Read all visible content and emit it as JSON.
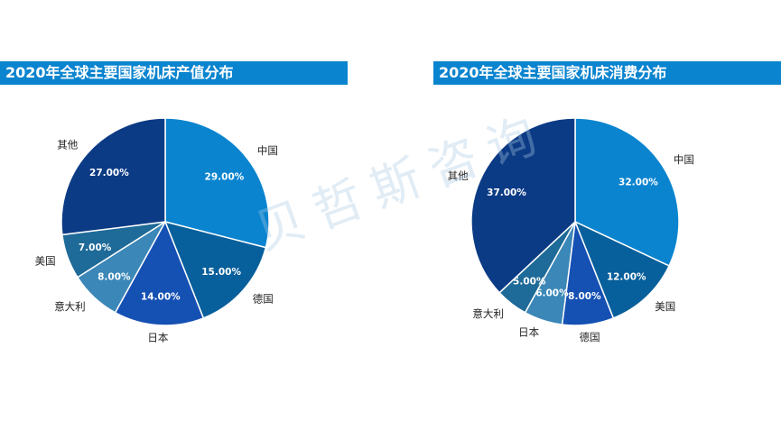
{
  "watermark": "贝哲斯咨询",
  "colors": [
    "#0a84cf",
    "#075f9b",
    "#1550b3",
    "#3b87b8",
    "#1e6a98",
    "#0c3b85"
  ],
  "chart_data": [
    {
      "type": "pie",
      "title": "2020年全球主要国家机床产值分布",
      "slices": [
        {
          "label": "中国",
          "value": 29.0,
          "text": "29.00%"
        },
        {
          "label": "德国",
          "value": 15.0,
          "text": "15.00%"
        },
        {
          "label": "日本",
          "value": 14.0,
          "text": "14.00%"
        },
        {
          "label": "意大利",
          "value": 8.0,
          "text": "8.00%"
        },
        {
          "label": "美国",
          "value": 7.0,
          "text": "7.00%"
        },
        {
          "label": "其他",
          "value": 27.0,
          "text": "27.00%"
        }
      ]
    },
    {
      "type": "pie",
      "title": "2020年全球主要国家机床消费分布",
      "slices": [
        {
          "label": "中国",
          "value": 32.0,
          "text": "32.00%"
        },
        {
          "label": "美国",
          "value": 12.0,
          "text": "12.00%"
        },
        {
          "label": "德国",
          "value": 8.0,
          "text": "8.00%"
        },
        {
          "label": "日本",
          "value": 6.0,
          "text": "6.00%"
        },
        {
          "label": "意大利",
          "value": 5.0,
          "text": "5.00%"
        },
        {
          "label": "其他",
          "value": 37.0,
          "text": "37.00%"
        }
      ]
    }
  ]
}
